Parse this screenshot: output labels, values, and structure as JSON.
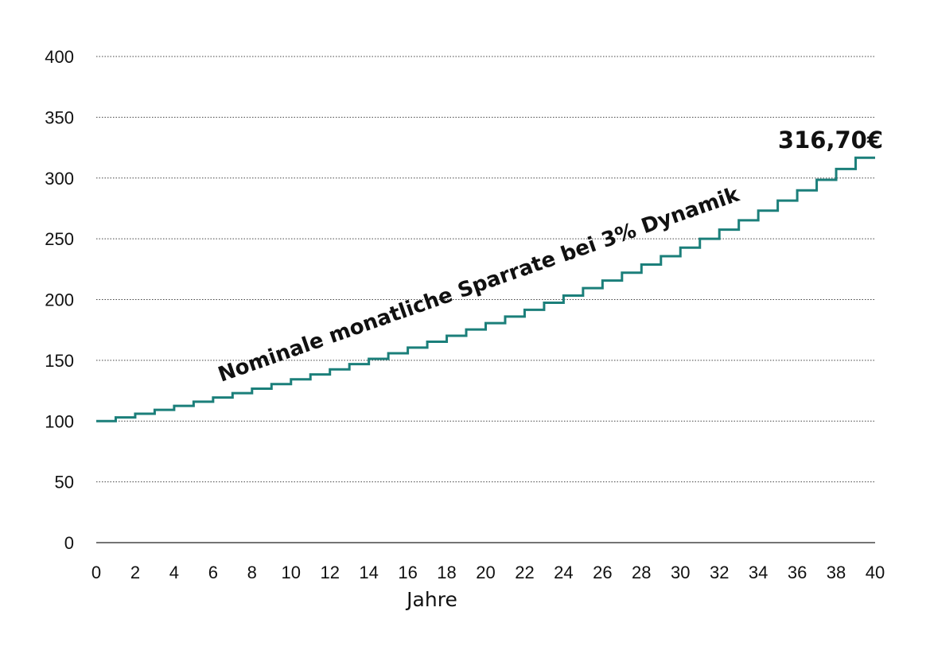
{
  "chart_data": {
    "type": "line",
    "xlabel": "Jahre",
    "ylabel": "",
    "xlim": [
      0,
      40
    ],
    "ylim": [
      0,
      400
    ],
    "x_ticks": [
      0,
      2,
      4,
      6,
      8,
      10,
      12,
      14,
      16,
      18,
      20,
      22,
      24,
      26,
      28,
      30,
      32,
      34,
      36,
      38,
      40
    ],
    "y_ticks": [
      0,
      50,
      100,
      150,
      200,
      250,
      300,
      350,
      400
    ],
    "grid": "horizontal dotted",
    "step": true,
    "line_color": "#1b7f7a",
    "annotation": "Nominale monatliche Sparrate bei 3% Dynamik",
    "end_label": "316,70€",
    "series": [
      {
        "x": [
          0,
          1,
          2,
          3,
          4,
          5,
          6,
          7,
          8,
          9,
          10,
          11,
          12,
          13,
          14,
          15,
          16,
          17,
          18,
          19,
          20,
          21,
          22,
          23,
          24,
          25,
          26,
          27,
          28,
          29,
          30,
          31,
          32,
          33,
          34,
          35,
          36,
          37,
          38,
          39,
          40
        ],
        "values": [
          100.0,
          103.0,
          106.09,
          109.27,
          112.55,
          115.93,
          119.41,
          122.99,
          126.68,
          130.48,
          134.39,
          138.42,
          142.58,
          146.85,
          151.26,
          155.8,
          160.47,
          165.28,
          170.24,
          175.35,
          180.61,
          186.03,
          191.61,
          197.36,
          203.28,
          209.38,
          215.66,
          222.13,
          228.79,
          235.66,
          242.73,
          250.01,
          257.51,
          265.23,
          273.19,
          281.39,
          289.83,
          298.52,
          307.48,
          316.7,
          316.7
        ]
      }
    ]
  }
}
